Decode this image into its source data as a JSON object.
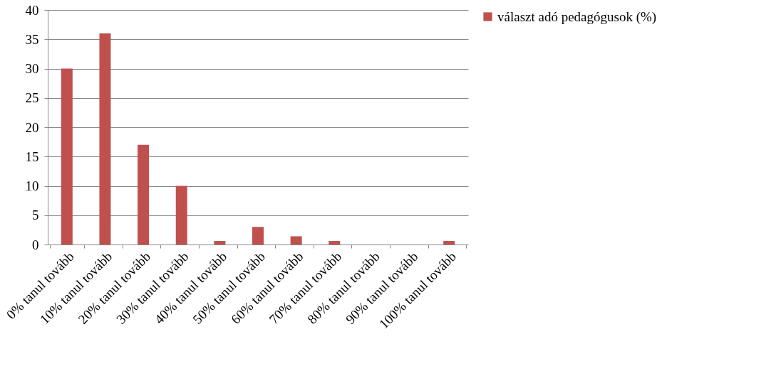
{
  "chart_data": {
    "type": "bar",
    "categories": [
      "0% tanul tovább",
      "10% tanul tovább",
      "20% tanul tovább",
      "30% tanul tovább",
      "40% tanul tovább",
      "50% tanul tovább",
      "60% tanul tovább",
      "70% tanul tovább",
      "80% tanul tovább",
      "90% tanul tovább",
      "100% tanul tovább"
    ],
    "series": [
      {
        "name": "választ adó pedagógusok (%)",
        "color": "#c0504d",
        "values": [
          30,
          36,
          17,
          10,
          0.6,
          3,
          1.4,
          0.6,
          0,
          0,
          0.6
        ]
      }
    ],
    "ylim": [
      0,
      40
    ],
    "yticks": [
      0,
      5,
      10,
      15,
      20,
      25,
      30,
      35,
      40
    ],
    "grid": "y",
    "legend": "right"
  }
}
